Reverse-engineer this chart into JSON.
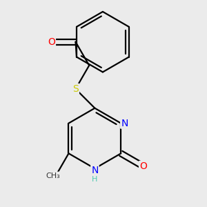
{
  "background_color": "#ebebeb",
  "bond_color": "#000000",
  "atom_colors": {
    "O": "#ff0000",
    "N": "#0000ff",
    "S": "#cccc00",
    "C": "#000000",
    "H": "#4ec9b0"
  },
  "figsize": [
    3.0,
    3.0
  ],
  "dpi": 100,
  "bond_lw": 1.6
}
